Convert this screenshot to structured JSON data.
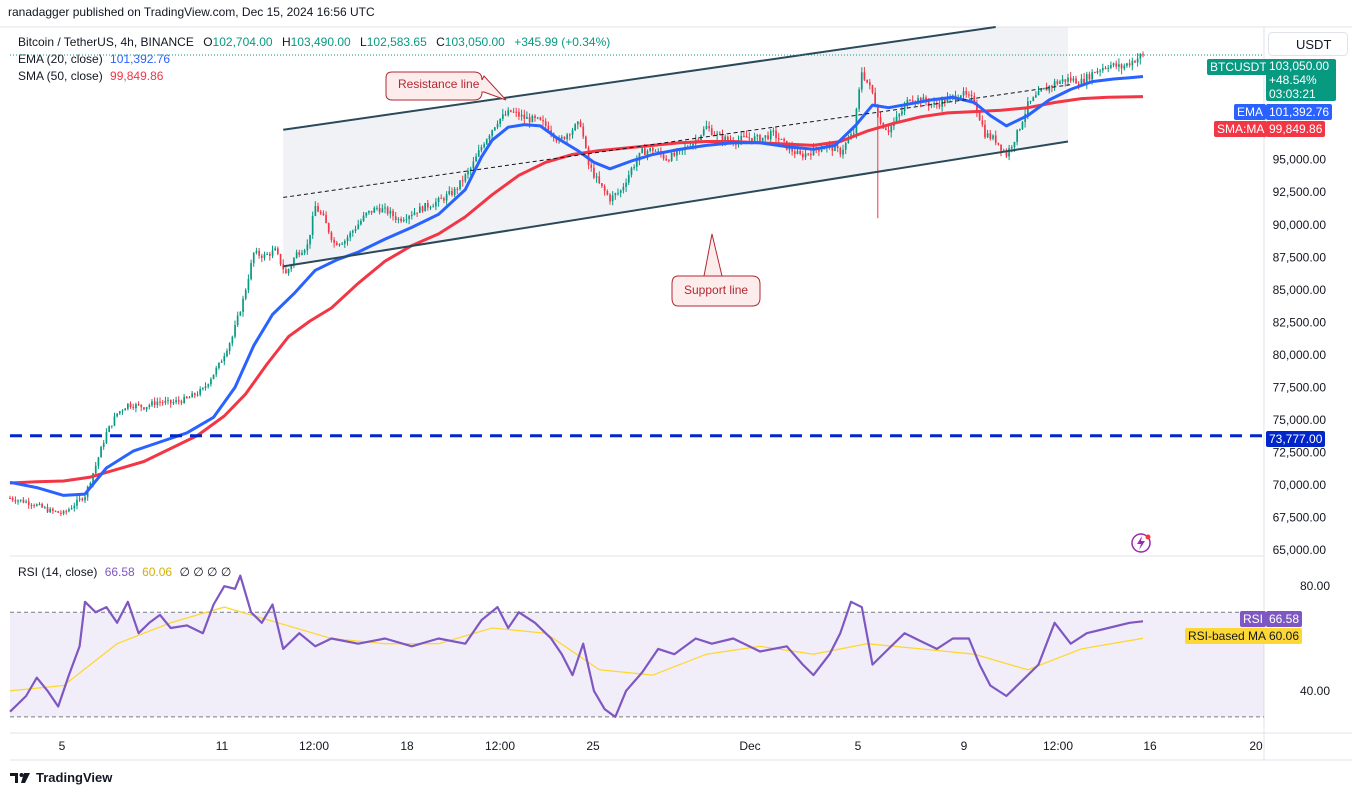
{
  "header": {
    "publisher": "ranadagger published on TradingView.com, Dec 15, 2024 16:56 UTC"
  },
  "legend": {
    "symbol": "Bitcoin / TetherUS, 4h, BINANCE",
    "o_label": "O",
    "o": "102,704.00",
    "h_label": "H",
    "h": "103,490.00",
    "l_label": "L",
    "l": "102,583.65",
    "c_label": "C",
    "c": "103,050.00",
    "change": "+345.99 (+0.34%)",
    "ema_label": "EMA (20, close)",
    "ema_value": "101,392.76",
    "sma_label": "SMA (50, close)",
    "sma_value": "99,849.86",
    "rsi_label": "RSI (14, close)",
    "rsi_value": "66.58",
    "rsi_ma_value": "60.06",
    "rsi_extra": "∅ ∅ ∅ ∅"
  },
  "currency_button": "USDT",
  "price_tags": {
    "symbol": "BTCUSDT",
    "price": "103,050.00",
    "change": "+48.54%",
    "countdown": "03:03:21",
    "ema_name": "EMA",
    "ema_price": "101,392.76",
    "sma_name": "SMA:MA",
    "sma_price": "99,849.86",
    "level": "73,777.00",
    "rsi_name": "RSI",
    "rsi_value": "66.58",
    "rsi_ma_name": "RSI-based MA",
    "rsi_ma_value": "60.06"
  },
  "annotations": {
    "resistance": "Resistance line",
    "support": "Support line"
  },
  "price_axis": [
    "95,000.00",
    "92,500.00",
    "90,000.00",
    "87,500.00",
    "85,000.00",
    "82,500.00",
    "80,000.00",
    "77,500.00",
    "75,000.00",
    "72,500.00",
    "70,000.00",
    "67,500.00",
    "65,000.00"
  ],
  "rsi_axis": [
    "80.00",
    "40.00"
  ],
  "time_axis": [
    "5",
    "11",
    "12:00",
    "18",
    "12:00",
    "25",
    "Dec",
    "5",
    "9",
    "12:00",
    "16",
    "20"
  ],
  "footer": {
    "brand": "TradingView"
  },
  "colors": {
    "up": "#089981",
    "down": "#f23645",
    "ema": "#2962ff",
    "sma": "#f23645",
    "channel": "#2a4a5a",
    "level": "#0026c9",
    "rsi": "#7e57c2",
    "rsi_ma": "#fdd835"
  },
  "chart_data": {
    "type": "candlestick",
    "title": "Bitcoin / TetherUS, 4h, BINANCE",
    "price_range": [
      64800,
      105200
    ],
    "horizontal_level": 73777,
    "last_close": 103050,
    "time_ticks": [
      "5",
      "11",
      "12:00",
      "18",
      "12:00",
      "25",
      "Dec",
      "5",
      "9",
      "12:00",
      "16",
      "20"
    ],
    "close_path": [
      [
        0,
        69000
      ],
      [
        8,
        68600
      ],
      [
        15,
        68000
      ],
      [
        20,
        67800
      ],
      [
        24,
        68500
      ],
      [
        28,
        69200
      ],
      [
        32,
        71500
      ],
      [
        36,
        74000
      ],
      [
        40,
        75500
      ],
      [
        44,
        76200
      ],
      [
        50,
        76000
      ],
      [
        55,
        76400
      ],
      [
        60,
        76300
      ],
      [
        66,
        76600
      ],
      [
        72,
        77300
      ],
      [
        78,
        79200
      ],
      [
        83,
        81400
      ],
      [
        87,
        84200
      ],
      [
        91,
        87800
      ],
      [
        95,
        87600
      ],
      [
        99,
        88000
      ],
      [
        103,
        86200
      ],
      [
        107,
        87800
      ],
      [
        111,
        88400
      ],
      [
        114,
        91400
      ],
      [
        117,
        90500
      ],
      [
        121,
        88600
      ],
      [
        125,
        88800
      ],
      [
        129,
        89800
      ],
      [
        133,
        90800
      ],
      [
        137,
        91300
      ],
      [
        141,
        91000
      ],
      [
        145,
        90400
      ],
      [
        150,
        90900
      ],
      [
        155,
        91400
      ],
      [
        160,
        91800
      ],
      [
        166,
        92600
      ],
      [
        172,
        94300
      ],
      [
        177,
        96400
      ],
      [
        182,
        98000
      ],
      [
        187,
        98700
      ],
      [
        192,
        98200
      ],
      [
        197,
        98000
      ],
      [
        201,
        97500
      ],
      [
        205,
        96400
      ],
      [
        209,
        97200
      ],
      [
        213,
        97800
      ],
      [
        216,
        94600
      ],
      [
        220,
        93100
      ],
      [
        224,
        92000
      ],
      [
        228,
        92600
      ],
      [
        232,
        94300
      ],
      [
        236,
        95600
      ],
      [
        240,
        95800
      ],
      [
        245,
        95100
      ],
      [
        250,
        95500
      ],
      [
        255,
        96300
      ],
      [
        260,
        97500
      ],
      [
        265,
        96700
      ],
      [
        270,
        96400
      ],
      [
        275,
        96700
      ],
      [
        280,
        96600
      ],
      [
        285,
        97000
      ],
      [
        290,
        96000
      ],
      [
        295,
        95300
      ],
      [
        300,
        95700
      ],
      [
        305,
        96100
      ],
      [
        310,
        95600
      ],
      [
        315,
        97100
      ],
      [
        318,
        101800
      ],
      [
        322,
        100100
      ],
      [
        325,
        97800
      ],
      [
        328,
        97300
      ],
      [
        332,
        98400
      ],
      [
        336,
        99800
      ],
      [
        340,
        99600
      ],
      [
        345,
        99200
      ],
      [
        350,
        99600
      ],
      [
        355,
        100100
      ],
      [
        360,
        99500
      ],
      [
        364,
        97000
      ],
      [
        368,
        96500
      ],
      [
        372,
        95400
      ],
      [
        376,
        97000
      ],
      [
        380,
        99200
      ],
      [
        385,
        100200
      ],
      [
        390,
        100900
      ],
      [
        395,
        101200
      ],
      [
        400,
        101000
      ],
      [
        405,
        101800
      ],
      [
        410,
        102300
      ],
      [
        415,
        102100
      ],
      [
        420,
        102700
      ],
      [
        423,
        103050
      ]
    ],
    "ema_path": [
      [
        0,
        70200
      ],
      [
        10,
        69800
      ],
      [
        20,
        69200
      ],
      [
        28,
        69300
      ],
      [
        36,
        71300
      ],
      [
        46,
        72600
      ],
      [
        56,
        73300
      ],
      [
        66,
        74000
      ],
      [
        76,
        75200
      ],
      [
        84,
        77500
      ],
      [
        91,
        80700
      ],
      [
        98,
        83100
      ],
      [
        106,
        84700
      ],
      [
        114,
        86500
      ],
      [
        122,
        87300
      ],
      [
        130,
        87900
      ],
      [
        140,
        88900
      ],
      [
        150,
        89800
      ],
      [
        160,
        90800
      ],
      [
        170,
        92700
      ],
      [
        176,
        95200
      ],
      [
        180,
        96500
      ],
      [
        186,
        97500
      ],
      [
        192,
        97700
      ],
      [
        198,
        97600
      ],
      [
        204,
        96700
      ],
      [
        212,
        95700
      ],
      [
        218,
        94800
      ],
      [
        224,
        94300
      ],
      [
        232,
        94900
      ],
      [
        240,
        95400
      ],
      [
        250,
        95800
      ],
      [
        260,
        96100
      ],
      [
        270,
        96300
      ],
      [
        280,
        96300
      ],
      [
        290,
        96000
      ],
      [
        300,
        95800
      ],
      [
        308,
        96100
      ],
      [
        316,
        97700
      ],
      [
        322,
        99200
      ],
      [
        328,
        99000
      ],
      [
        336,
        99300
      ],
      [
        344,
        99600
      ],
      [
        352,
        99800
      ],
      [
        360,
        99400
      ],
      [
        366,
        98400
      ],
      [
        372,
        97600
      ],
      [
        380,
        98400
      ],
      [
        388,
        99600
      ],
      [
        396,
        100400
      ],
      [
        404,
        101000
      ],
      [
        412,
        101200
      ],
      [
        418,
        101300
      ],
      [
        423,
        101393
      ]
    ],
    "sma_path": [
      [
        0,
        70150
      ],
      [
        10,
        70250
      ],
      [
        20,
        70300
      ],
      [
        30,
        70600
      ],
      [
        40,
        71200
      ],
      [
        50,
        71800
      ],
      [
        60,
        72800
      ],
      [
        70,
        73800
      ],
      [
        80,
        75300
      ],
      [
        88,
        77000
      ],
      [
        96,
        79300
      ],
      [
        104,
        81400
      ],
      [
        112,
        82600
      ],
      [
        120,
        83600
      ],
      [
        130,
        85500
      ],
      [
        140,
        87200
      ],
      [
        150,
        88400
      ],
      [
        160,
        89300
      ],
      [
        170,
        90600
      ],
      [
        180,
        92300
      ],
      [
        190,
        93800
      ],
      [
        200,
        94800
      ],
      [
        210,
        95400
      ],
      [
        220,
        95700
      ],
      [
        230,
        95900
      ],
      [
        240,
        96100
      ],
      [
        250,
        96300
      ],
      [
        260,
        96400
      ],
      [
        270,
        96400
      ],
      [
        280,
        96300
      ],
      [
        290,
        96200
      ],
      [
        300,
        96100
      ],
      [
        310,
        96400
      ],
      [
        320,
        97200
      ],
      [
        330,
        97800
      ],
      [
        340,
        98300
      ],
      [
        350,
        98600
      ],
      [
        360,
        98700
      ],
      [
        370,
        98800
      ],
      [
        380,
        99000
      ],
      [
        390,
        99400
      ],
      [
        400,
        99700
      ],
      [
        410,
        99800
      ],
      [
        423,
        99850
      ]
    ],
    "channel": {
      "resistance": [
        [
          102,
          97300
        ],
        [
          368,
          105200
        ]
      ],
      "support": [
        [
          102,
          86800
        ],
        [
          395,
          96400
        ]
      ],
      "midline": [
        [
          102,
          92100
        ],
        [
          397,
          100800
        ]
      ]
    },
    "rsi": {
      "range": [
        25,
        90
      ],
      "levels": [
        70,
        30
      ],
      "rsi_path": [
        [
          0,
          32
        ],
        [
          6,
          38
        ],
        [
          10,
          45
        ],
        [
          14,
          40
        ],
        [
          18,
          34
        ],
        [
          22,
          46
        ],
        [
          26,
          57
        ],
        [
          28,
          74
        ],
        [
          32,
          70
        ],
        [
          36,
          72
        ],
        [
          40,
          66
        ],
        [
          44,
          74
        ],
        [
          48,
          62
        ],
        [
          52,
          66
        ],
        [
          56,
          69
        ],
        [
          60,
          64
        ],
        [
          66,
          65
        ],
        [
          72,
          62
        ],
        [
          76,
          73
        ],
        [
          80,
          80
        ],
        [
          84,
          79
        ],
        [
          86,
          84
        ],
        [
          90,
          70
        ],
        [
          94,
          66
        ],
        [
          98,
          73
        ],
        [
          102,
          56
        ],
        [
          108,
          62
        ],
        [
          114,
          57
        ],
        [
          120,
          60
        ],
        [
          130,
          58
        ],
        [
          140,
          60
        ],
        [
          150,
          57
        ],
        [
          160,
          60
        ],
        [
          170,
          58
        ],
        [
          176,
          67
        ],
        [
          182,
          72
        ],
        [
          186,
          64
        ],
        [
          190,
          70
        ],
        [
          196,
          66
        ],
        [
          202,
          60
        ],
        [
          206,
          54
        ],
        [
          210,
          46
        ],
        [
          214,
          58
        ],
        [
          218,
          40
        ],
        [
          222,
          33
        ],
        [
          226,
          30
        ],
        [
          230,
          40
        ],
        [
          236,
          47
        ],
        [
          242,
          56
        ],
        [
          248,
          54
        ],
        [
          256,
          60
        ],
        [
          262,
          58
        ],
        [
          270,
          60
        ],
        [
          280,
          55
        ],
        [
          290,
          57
        ],
        [
          296,
          50
        ],
        [
          300,
          46
        ],
        [
          306,
          54
        ],
        [
          310,
          62
        ],
        [
          314,
          74
        ],
        [
          318,
          72
        ],
        [
          322,
          50
        ],
        [
          328,
          56
        ],
        [
          334,
          62
        ],
        [
          340,
          59
        ],
        [
          346,
          56
        ],
        [
          352,
          60
        ],
        [
          358,
          60
        ],
        [
          362,
          50
        ],
        [
          366,
          42
        ],
        [
          372,
          38
        ],
        [
          378,
          44
        ],
        [
          384,
          50
        ],
        [
          390,
          66
        ],
        [
          396,
          58
        ],
        [
          402,
          62
        ],
        [
          410,
          64
        ],
        [
          418,
          66
        ],
        [
          423,
          66.58
        ]
      ],
      "rsi_ma_path": [
        [
          0,
          40
        ],
        [
          20,
          42
        ],
        [
          40,
          58
        ],
        [
          60,
          66
        ],
        [
          80,
          72
        ],
        [
          100,
          66
        ],
        [
          120,
          60
        ],
        [
          140,
          58
        ],
        [
          160,
          58
        ],
        [
          180,
          64
        ],
        [
          200,
          62
        ],
        [
          220,
          48
        ],
        [
          240,
          46
        ],
        [
          260,
          54
        ],
        [
          280,
          57
        ],
        [
          300,
          54
        ],
        [
          320,
          58
        ],
        [
          340,
          56
        ],
        [
          360,
          54
        ],
        [
          380,
          48
        ],
        [
          400,
          56
        ],
        [
          423,
          60.06
        ]
      ]
    }
  }
}
